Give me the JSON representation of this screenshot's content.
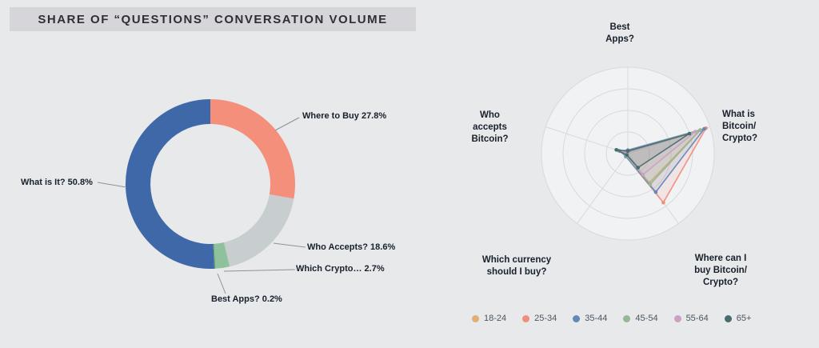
{
  "title": "SHARE OF “QUESTIONS” CONVERSATION VOLUME",
  "chart_data": [
    {
      "type": "pie",
      "title": "Share of “Questions” conversation volume",
      "donut": true,
      "segments": [
        {
          "label": "Where to Buy",
          "value": 27.8,
          "color": "#f48f7c",
          "display": "Where to Buy 27.8%"
        },
        {
          "label": "Who Accepts?",
          "value": 18.6,
          "color": "#c8cecf",
          "display": "Who Accepts? 18.6%"
        },
        {
          "label": "Which Crypto…",
          "value": 2.7,
          "color": "#8fc19c",
          "display": "Which Crypto… 2.7%"
        },
        {
          "label": "Best Apps?",
          "value": 0.2,
          "color": "#5d9d72",
          "display": "Best Apps? 0.2%"
        },
        {
          "label": "What is It?",
          "value": 50.8,
          "color": "#3e68a7",
          "display": "What is It? 50.8%"
        }
      ]
    },
    {
      "type": "radar",
      "axes": [
        "Best Apps?",
        "What is Bitcoin/Crypto?",
        "Where can I buy Bitcoin/Crypto?",
        "Which currency should I buy?",
        "Who accepts Bitcoin?"
      ],
      "axis_labels_display": [
        "Best\nApps?",
        "What is\nBitcoin/\nCrypto?",
        "Where can I\nbuy Bitcoin/\nCrypto?",
        "Which currency\nshould I buy?",
        "Who\naccepts\nBitcoin?"
      ],
      "scale_max": 100,
      "rings": 4,
      "grid": true,
      "legend_position": "bottom-right",
      "series": [
        {
          "name": "18-24",
          "color": "#e2ae74",
          "values": [
            2,
            88,
            42,
            3,
            8
          ]
        },
        {
          "name": "25-34",
          "color": "#f28d7b",
          "values": [
            3,
            95,
            70,
            4,
            6
          ]
        },
        {
          "name": "35-44",
          "color": "#6488b8",
          "values": [
            4,
            93,
            55,
            4,
            10
          ]
        },
        {
          "name": "45-54",
          "color": "#94b794",
          "values": [
            3,
            88,
            44,
            3,
            12
          ]
        },
        {
          "name": "55-64",
          "color": "#c8a2c3",
          "values": [
            2,
            82,
            30,
            2,
            7
          ]
        },
        {
          "name": "65+",
          "color": "#486b70",
          "values": [
            3,
            75,
            20,
            2,
            14
          ]
        }
      ]
    }
  ]
}
